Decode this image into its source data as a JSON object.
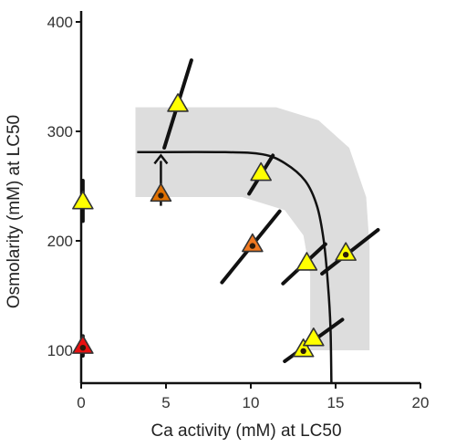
{
  "chart_data": {
    "type": "scatter",
    "title": "",
    "xlabel": "Ca activity (mM) at LC50",
    "ylabel": "Osmolarity (mM) at LC50",
    "xlim": [
      0,
      20
    ],
    "ylim": [
      70,
      400
    ],
    "x_ticks": [
      "0",
      "5",
      "10",
      "15",
      "20"
    ],
    "y_ticks": [
      "100",
      "200",
      "300",
      "400"
    ],
    "grid": false,
    "legend": "none",
    "colors": {
      "yellow": "#ffff00",
      "orange": "#f07820",
      "dark_orange": "#e07000",
      "red": "#e81010",
      "band": "#dddddd",
      "curve": "#111111",
      "outline": "#333333"
    },
    "points": [
      {
        "x": 0.1,
        "y": 104,
        "color": "red",
        "dot": true
      },
      {
        "x": 0.1,
        "y": 236,
        "color": "yellow",
        "dot": false
      },
      {
        "x": 4.7,
        "y": 243,
        "color": "dark_orange",
        "dot": true
      },
      {
        "x": 5.7,
        "y": 325,
        "color": "yellow",
        "dot": false
      },
      {
        "x": 10.1,
        "y": 197,
        "color": "orange",
        "dot": true
      },
      {
        "x": 10.6,
        "y": 262,
        "color": "yellow",
        "dot": false
      },
      {
        "x": 13.1,
        "y": 101,
        "color": "yellow",
        "dot": true
      },
      {
        "x": 13.3,
        "y": 180,
        "color": "yellow",
        "dot": false
      },
      {
        "x": 13.7,
        "y": 111,
        "color": "yellow",
        "dot": false
      },
      {
        "x": 15.6,
        "y": 189,
        "color": "yellow",
        "dot": true
      }
    ],
    "error_lines": [
      {
        "from": [
          0.1,
          95
        ],
        "to": [
          0.1,
          113
        ]
      },
      {
        "from": [
          0.1,
          218
        ],
        "to": [
          0.1,
          255
        ]
      },
      {
        "from": [
          4.9,
          285
        ],
        "to": [
          6.5,
          365
        ]
      },
      {
        "from": [
          8.3,
          162
        ],
        "to": [
          11.7,
          227
        ]
      },
      {
        "from": [
          9.9,
          243
        ],
        "to": [
          11.3,
          278
        ]
      },
      {
        "from": [
          11.9,
          161
        ],
        "to": [
          14.4,
          197
        ]
      },
      {
        "from": [
          12.0,
          90
        ],
        "to": [
          15.4,
          128
        ]
      },
      {
        "from": [
          14.2,
          170
        ],
        "to": [
          17.5,
          210
        ]
      }
    ],
    "arrow": {
      "from": [
        4.7,
        232
      ],
      "to": [
        4.7,
        278
      ]
    },
    "curve": [
      [
        3.3,
        281
      ],
      [
        8.5,
        281
      ],
      [
        10.7,
        279
      ],
      [
        12.0,
        271
      ],
      [
        13.2,
        255
      ],
      [
        13.9,
        232
      ],
      [
        14.3,
        200
      ],
      [
        14.55,
        160
      ],
      [
        14.7,
        120
      ],
      [
        14.75,
        70
      ]
    ],
    "band": {
      "outer": [
        [
          3.2,
          322
        ],
        [
          11.5,
          322
        ],
        [
          14.0,
          310
        ],
        [
          15.8,
          285
        ],
        [
          16.8,
          240
        ],
        [
          17.0,
          195
        ],
        [
          17.0,
          100
        ]
      ],
      "inner": [
        [
          13.5,
          100
        ],
        [
          13.5,
          170
        ],
        [
          13.1,
          205
        ],
        [
          12.0,
          228
        ],
        [
          9.5,
          240
        ],
        [
          3.2,
          240
        ]
      ]
    }
  }
}
